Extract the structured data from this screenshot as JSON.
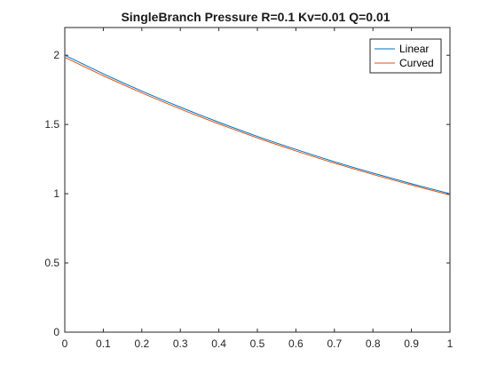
{
  "chart_data": {
    "type": "line",
    "title": "SingleBranch Pressure R=0.1 Kv=0.01 Q=0.01",
    "xlabel": "",
    "ylabel": "",
    "xlim": [
      0,
      1
    ],
    "ylim": [
      0,
      2.2
    ],
    "xticks": [
      0,
      0.1,
      0.2,
      0.3,
      0.4,
      0.5,
      0.6,
      0.7,
      0.8,
      0.9,
      1
    ],
    "xtick_labels": [
      "0",
      "0.1",
      "0.2",
      "0.3",
      "0.4",
      "0.5",
      "0.6",
      "0.7",
      "0.8",
      "0.9",
      "1"
    ],
    "yticks": [
      0,
      0.5,
      1,
      1.5,
      2
    ],
    "ytick_labels": [
      "0",
      "0.5",
      "1",
      "1.5",
      "2"
    ],
    "grid": false,
    "legend_position": "top-right",
    "series": [
      {
        "name": "Linear",
        "color": "#0072BD",
        "x": [
          0,
          0.1,
          0.2,
          0.3,
          0.4,
          0.5,
          0.6,
          0.7,
          0.8,
          0.9,
          1
        ],
        "y": [
          2.0,
          1.866,
          1.741,
          1.625,
          1.516,
          1.414,
          1.32,
          1.231,
          1.149,
          1.072,
          1.0
        ]
      },
      {
        "name": "Curved",
        "color": "#D95319",
        "x": [
          0,
          0.1,
          0.2,
          0.3,
          0.4,
          0.5,
          0.6,
          0.7,
          0.8,
          0.9,
          1
        ],
        "y": [
          1.985,
          1.852,
          1.728,
          1.612,
          1.504,
          1.403,
          1.309,
          1.221,
          1.139,
          1.063,
          0.99
        ]
      }
    ]
  }
}
